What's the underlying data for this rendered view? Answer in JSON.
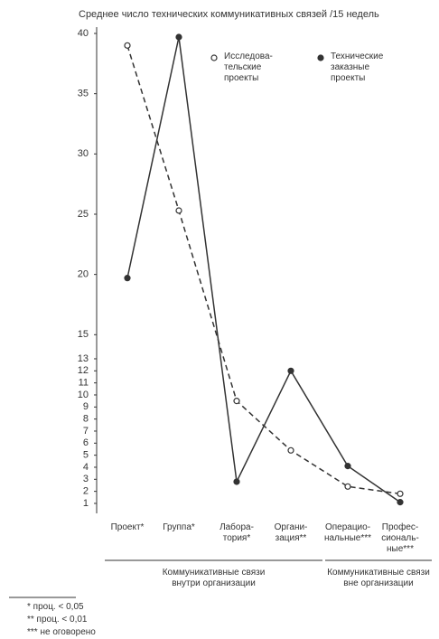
{
  "chart_data": {
    "type": "line",
    "title": "Среднее число технических коммуникативных связей /15 недель",
    "categories": [
      "Проект*",
      "Группа*",
      "Лабора-\nтория*",
      "Органи-\nзация**",
      "Операцио-\nнальные***",
      "Профес-\nсиональ-\nные***"
    ],
    "series": [
      {
        "name": "Исследова-\nтельские\nпроекты",
        "color": "#333333",
        "marker": "open",
        "dashed": true,
        "values": [
          39,
          25.3,
          9.5,
          5.4,
          2.4,
          1.8
        ]
      },
      {
        "name": "Технические\nзаказные\nпроекты",
        "color": "#333333",
        "marker": "filled",
        "dashed": false,
        "values": [
          19.7,
          39.7,
          2.8,
          12,
          4.1,
          1.1
        ]
      }
    ],
    "ylim": [
      0,
      40
    ],
    "yticks": [
      1,
      2,
      3,
      4,
      5,
      6,
      7,
      8,
      9,
      10,
      11,
      12,
      13,
      15,
      20,
      25,
      30,
      35,
      40
    ],
    "groups": [
      {
        "label": "Коммуникативные связи\nвнутри организации",
        "from": 0,
        "to": 3
      },
      {
        "label": "Коммуникативные связи\nвне организации",
        "from": 4,
        "to": 5
      }
    ],
    "footnotes": [
      "* проц. < 0,05",
      "** проц. < 0,01",
      "*** не оговорено"
    ]
  }
}
